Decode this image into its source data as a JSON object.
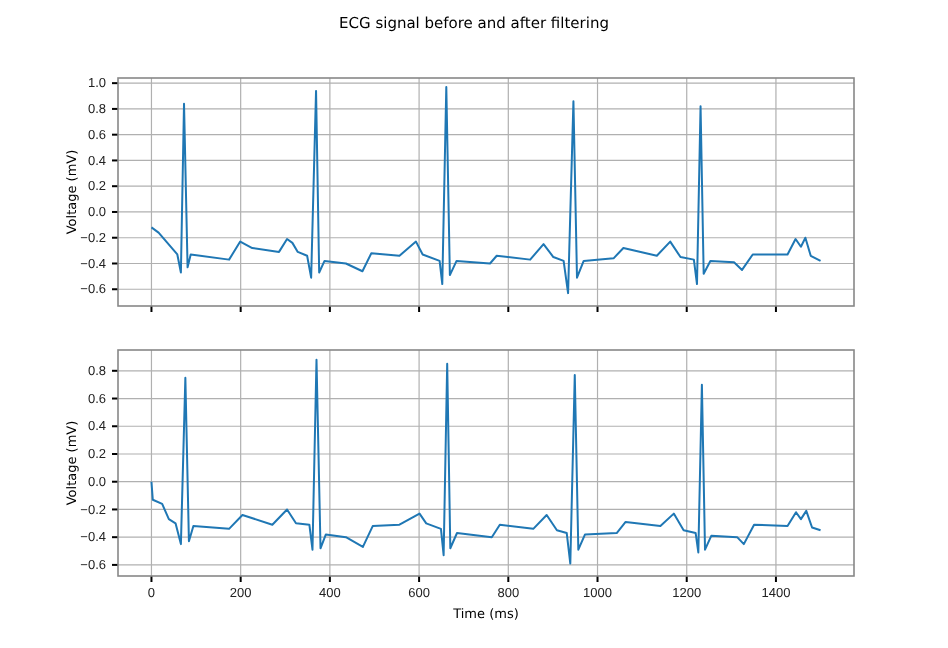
{
  "chart_data": [
    {
      "type": "line",
      "title": "ECG signal before and after filtering",
      "ylabel": "Voltage (mV)",
      "grid": true,
      "tick_labels": "y",
      "xlim": [
        -75,
        1575
      ],
      "xticks": [
        0,
        200,
        400,
        600,
        800,
        1000,
        1200,
        1400
      ],
      "ylim": [
        -0.73,
        1.04
      ],
      "yticks": [
        {
          "value": -0.6,
          "label": "−0.6"
        },
        {
          "value": -0.4,
          "label": "−0.4"
        },
        {
          "value": -0.2,
          "label": "−0.2"
        },
        {
          "value": 0,
          "label": "0.0"
        },
        {
          "value": 0.2,
          "label": "0.2"
        },
        {
          "value": 0.4,
          "label": "0.4"
        },
        {
          "value": 0.6,
          "label": "0.6"
        },
        {
          "value": 0.8,
          "label": "0.8"
        },
        {
          "value": 1,
          "label": "1.0"
        }
      ],
      "x": [
        0,
        16,
        58,
        66,
        73,
        81,
        88,
        174,
        199,
        226,
        286,
        304,
        316,
        328,
        349,
        358,
        369,
        376,
        388,
        436,
        473,
        493,
        556,
        593,
        608,
        646,
        652,
        661,
        669,
        684,
        759,
        774,
        849,
        879,
        901,
        924,
        934,
        946,
        954,
        969,
        1036,
        1058,
        1133,
        1163,
        1186,
        1216,
        1223,
        1231,
        1238,
        1253,
        1306,
        1324,
        1348,
        1426,
        1444,
        1456,
        1466,
        1478,
        1500
      ],
      "series": [
        {
          "color": "#1f77b4",
          "values": [
            -0.12,
            -0.16,
            -0.33,
            -0.47,
            0.84,
            -0.43,
            -0.33,
            -0.37,
            -0.23,
            -0.28,
            -0.31,
            -0.21,
            -0.24,
            -0.31,
            -0.34,
            -0.51,
            0.94,
            -0.47,
            -0.38,
            -0.4,
            -0.46,
            -0.32,
            -0.34,
            -0.23,
            -0.33,
            -0.38,
            -0.56,
            0.97,
            -0.49,
            -0.38,
            -0.4,
            -0.34,
            -0.37,
            -0.25,
            -0.35,
            -0.38,
            -0.63,
            0.86,
            -0.51,
            -0.38,
            -0.36,
            -0.28,
            -0.34,
            -0.23,
            -0.35,
            -0.37,
            -0.56,
            0.82,
            -0.48,
            -0.38,
            -0.39,
            -0.45,
            -0.33,
            -0.33,
            -0.21,
            -0.27,
            -0.2,
            -0.34,
            -0.38
          ]
        }
      ]
    },
    {
      "type": "line",
      "xlabel": "Time (ms)",
      "ylabel": "Voltage (mV)",
      "grid": true,
      "xlim": [
        -75,
        1575
      ],
      "xticks": [
        0,
        200,
        400,
        600,
        800,
        1000,
        1200,
        1400
      ],
      "ylim": [
        -0.68,
        0.95
      ],
      "yticks": [
        {
          "value": -0.6,
          "label": "−0.6"
        },
        {
          "value": -0.4,
          "label": "−0.4"
        },
        {
          "value": -0.2,
          "label": "−0.2"
        },
        {
          "value": 0,
          "label": "0.0"
        },
        {
          "value": 0.2,
          "label": "0.2"
        },
        {
          "value": 0.4,
          "label": "0.4"
        },
        {
          "value": 0.6,
          "label": "0.6"
        },
        {
          "value": 0.8,
          "label": "0.8"
        }
      ],
      "x": [
        0,
        3,
        24,
        39,
        54,
        66,
        76,
        84,
        94,
        174,
        204,
        271,
        304,
        324,
        354,
        361,
        370,
        379,
        391,
        436,
        474,
        496,
        556,
        601,
        616,
        649,
        655,
        663,
        670,
        685,
        763,
        781,
        856,
        886,
        909,
        931,
        939,
        949,
        957,
        972,
        1043,
        1063,
        1141,
        1171,
        1193,
        1220,
        1226,
        1234,
        1241,
        1255,
        1313,
        1328,
        1351,
        1426,
        1445,
        1456,
        1468,
        1481,
        1500
      ],
      "series": [
        {
          "color": "#1f77b4",
          "values": [
            0.0,
            -0.13,
            -0.16,
            -0.27,
            -0.3,
            -0.45,
            0.75,
            -0.43,
            -0.32,
            -0.34,
            -0.24,
            -0.31,
            -0.2,
            -0.3,
            -0.31,
            -0.49,
            0.88,
            -0.48,
            -0.38,
            -0.4,
            -0.47,
            -0.32,
            -0.31,
            -0.23,
            -0.3,
            -0.34,
            -0.53,
            0.85,
            -0.48,
            -0.37,
            -0.4,
            -0.31,
            -0.34,
            -0.24,
            -0.35,
            -0.37,
            -0.59,
            0.77,
            -0.49,
            -0.38,
            -0.37,
            -0.29,
            -0.32,
            -0.23,
            -0.35,
            -0.37,
            -0.51,
            0.7,
            -0.49,
            -0.39,
            -0.4,
            -0.45,
            -0.31,
            -0.32,
            -0.22,
            -0.27,
            -0.21,
            -0.33,
            -0.35
          ]
        }
      ]
    }
  ]
}
